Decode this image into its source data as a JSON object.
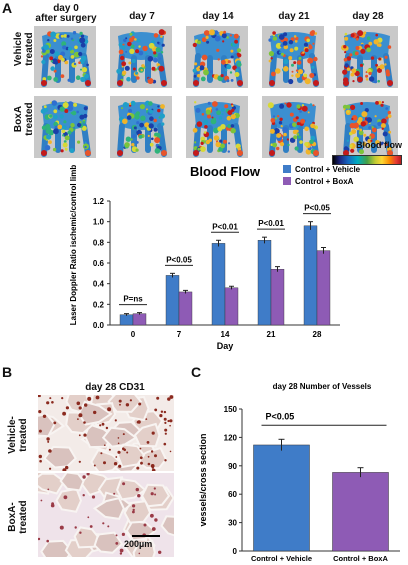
{
  "panel_a": {
    "letter": "A",
    "days": [
      [
        "day 0",
        "after surgery"
      ],
      [
        "day 7"
      ],
      [
        "day 14"
      ],
      [
        "day 21"
      ],
      [
        "day 28"
      ]
    ],
    "rows": [
      [
        "Vehicle",
        "treated"
      ],
      [
        "BoxA",
        "treated"
      ]
    ],
    "colorbar_label": "Blood flow"
  },
  "panel_b": {
    "letter": "B",
    "title": "day 28 CD31",
    "rows": [
      [
        "Vehicle-",
        "treated"
      ],
      [
        "BoxA-",
        "treated"
      ]
    ],
    "scale_label": "200µm"
  },
  "panel_c": {
    "letter": "C"
  },
  "chart_data": [
    {
      "type": "bar",
      "title": "Blood Flow",
      "xlabel": "Day",
      "ylabel": "Laser Doppler Ratio ischemic/control limb",
      "categories": [
        "0",
        "7",
        "14",
        "21",
        "28"
      ],
      "ylim": [
        0,
        1.2
      ],
      "yticks": [
        "0.0",
        "0.2",
        "0.4",
        "0.6",
        "0.8",
        "1.0",
        "1.2"
      ],
      "series": [
        {
          "name": "Control + Vehicle",
          "color": "#3f7cc8",
          "values": [
            0.1,
            0.48,
            0.79,
            0.82,
            0.96
          ],
          "errors": [
            0.01,
            0.02,
            0.03,
            0.03,
            0.04
          ]
        },
        {
          "name": "Control + BoxA",
          "color": "#8e5bb5",
          "values": [
            0.11,
            0.32,
            0.36,
            0.54,
            0.72
          ],
          "errors": [
            0.01,
            0.015,
            0.015,
            0.025,
            0.03
          ]
        }
      ],
      "annotations": [
        "P=ns",
        "P<0.05",
        "P<0.01",
        "P<0.01",
        "P<0.05"
      ],
      "legend_position": "top-right",
      "grid": false
    },
    {
      "type": "bar",
      "title": "day 28 Number of Vessels",
      "ylabel": "vessels/cross section",
      "categories": [
        "Control + Vehicle",
        "Control + BoxA"
      ],
      "ylim": [
        0,
        150
      ],
      "yticks": [
        "0",
        "30",
        "60",
        "90",
        "120",
        "150"
      ],
      "values": [
        112,
        83
      ],
      "errors": [
        6,
        5
      ],
      "colors": [
        "#3f7cc8",
        "#8e5bb5"
      ],
      "annotation": "P<0.05",
      "grid": false
    }
  ]
}
